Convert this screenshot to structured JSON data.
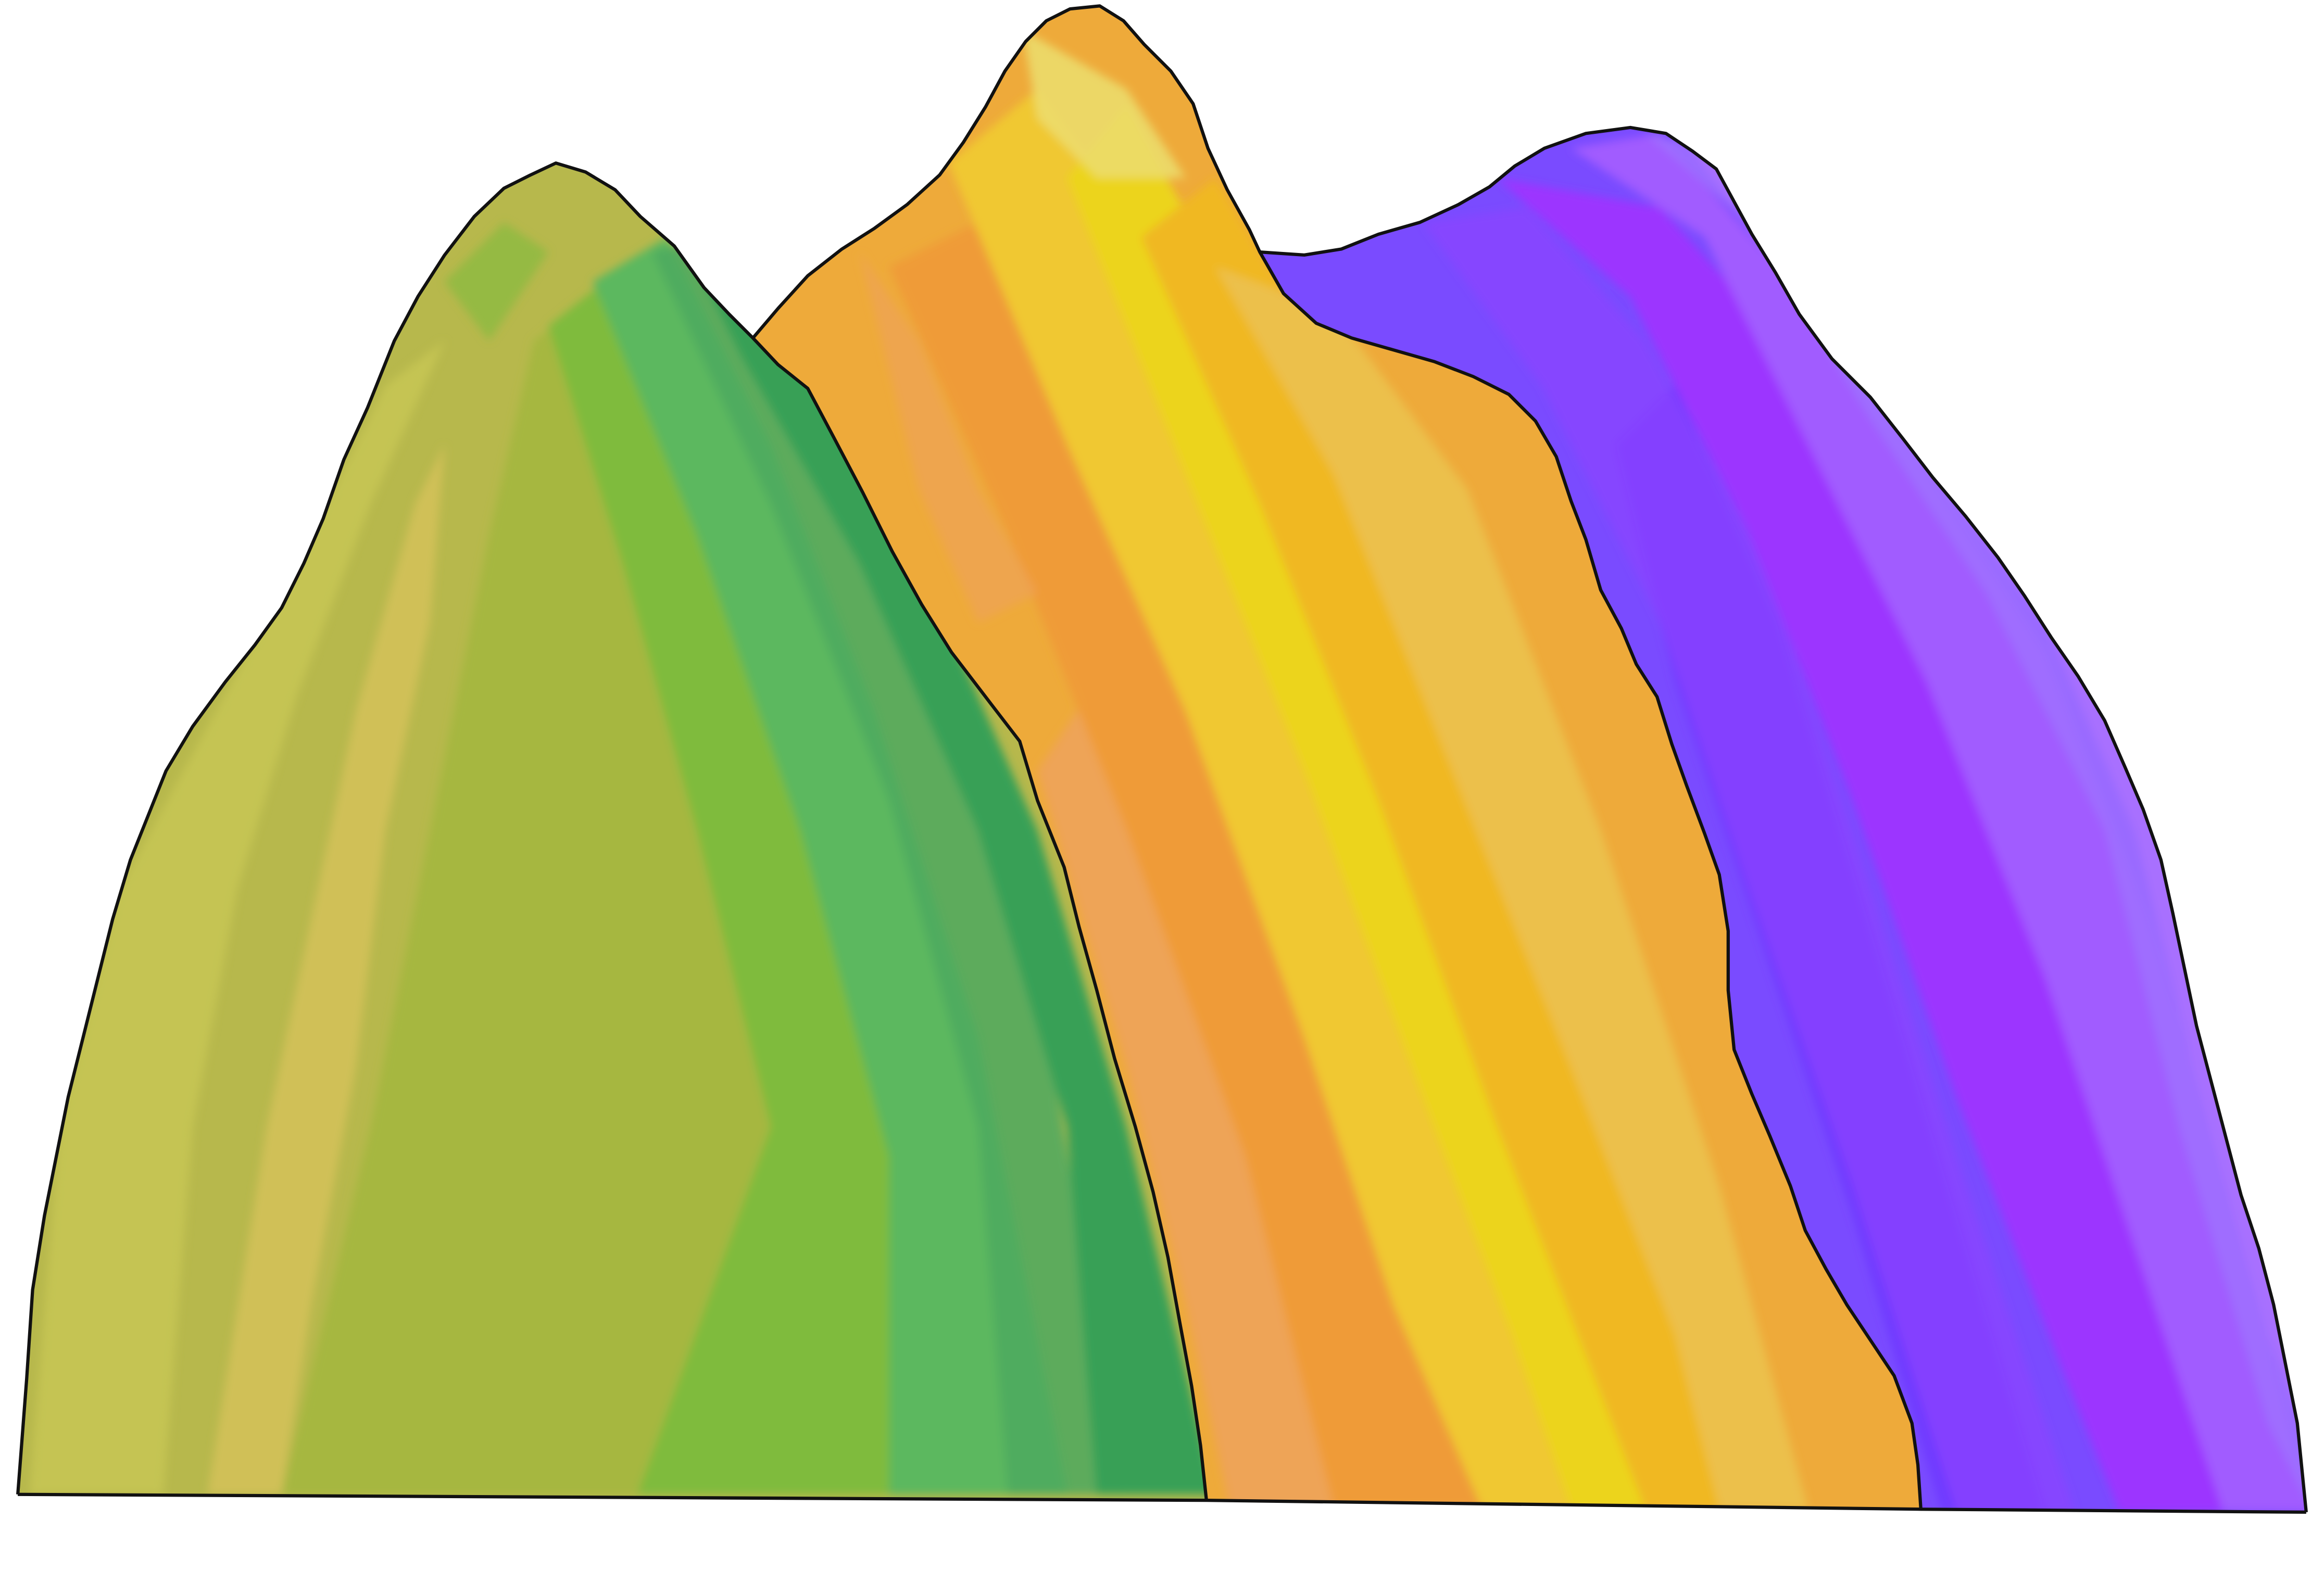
{
  "scene": {
    "background": "#ffffff",
    "outline_color": "#111111",
    "peaks": [
      {
        "id": "green",
        "palette": [
          "#b7b84c",
          "#c5c452",
          "#d8c35c",
          "#a6b740",
          "#7fbb3d",
          "#5cb85e",
          "#4ea95f",
          "#38a056"
        ]
      },
      {
        "id": "orange-yellow",
        "palette": [
          "#eea25c",
          "#eeaa3a",
          "#ef9b38",
          "#f0c832",
          "#ecd41e",
          "#f0b820",
          "#ecc04c",
          "#ecdc6c"
        ]
      },
      {
        "id": "purple",
        "palette": [
          "#7a4bff",
          "#6f3bff",
          "#8944ff",
          "#9c36ff",
          "#a15cff",
          "#9f70ff",
          "#ac72ff"
        ]
      }
    ]
  }
}
